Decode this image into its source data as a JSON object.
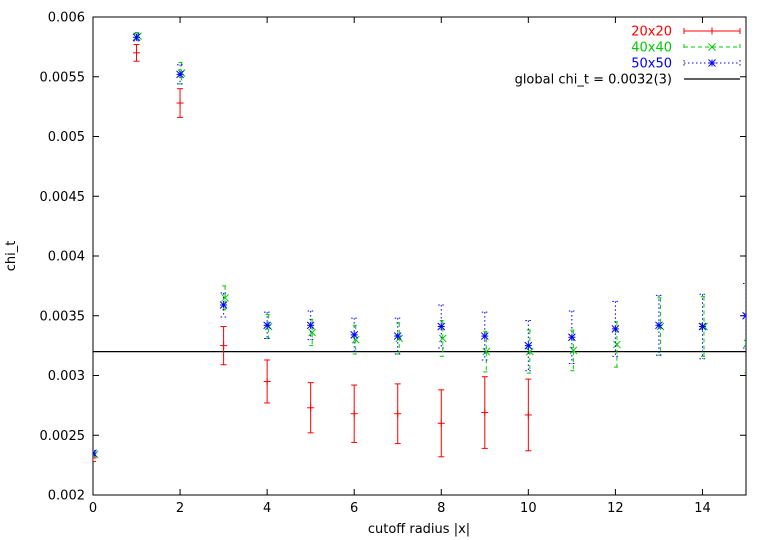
{
  "chart_data": {
    "type": "scatter",
    "title": "",
    "xlabel": "cutoff radius |x|",
    "ylabel": "chi_t",
    "xlim": [
      0,
      15
    ],
    "ylim": [
      0.002,
      0.006
    ],
    "x_ticks": [
      "0",
      "2",
      "4",
      "6",
      "8",
      "10",
      "12",
      "14"
    ],
    "y_ticks": [
      "0.002",
      "0.0025",
      "0.003",
      "0.0035",
      "0.004",
      "0.0045",
      "0.005",
      "0.0055",
      "0.006"
    ],
    "grid": false,
    "legend_position": "top-right",
    "series": [
      {
        "name": "20x20",
        "color": "#ff0000",
        "marker": "plus",
        "errorbar_style": "solid",
        "x": [
          0,
          1,
          2,
          3,
          4,
          5,
          6,
          7,
          8,
          9,
          10
        ],
        "y": [
          0.00231,
          0.0057,
          0.00528,
          0.00325,
          0.00295,
          0.00273,
          0.00268,
          0.00268,
          0.0026,
          0.00269,
          0.00267
        ],
        "yerr": [
          3e-05,
          7e-05,
          0.00012,
          0.00016,
          0.00018,
          0.00021,
          0.00024,
          0.00025,
          0.00028,
          0.0003,
          0.0003
        ]
      },
      {
        "name": "40x40",
        "color": "#00cc00",
        "marker": "cross",
        "errorbar_style": "dashed",
        "x": [
          0,
          1,
          2,
          3,
          4,
          5,
          6,
          7,
          8,
          9,
          10,
          11,
          12,
          13,
          14,
          15
        ],
        "y": [
          0.00234,
          0.00584,
          0.00553,
          0.00365,
          0.00341,
          0.00336,
          0.0033,
          0.00331,
          0.00331,
          0.0032,
          0.0032,
          0.00321,
          0.00326,
          0.00341,
          0.00341,
          0.00327
        ],
        "yerr": [
          2e-05,
          3e-05,
          9e-05,
          0.0001,
          0.0001,
          0.00011,
          0.00012,
          0.00013,
          0.00015,
          0.00017,
          0.00018,
          0.00017,
          0.00019,
          0.00024,
          0.00025,
          0.00025
        ]
      },
      {
        "name": "50x50",
        "color": "#0000ff",
        "marker": "star",
        "errorbar_style": "dotted",
        "x": [
          0,
          1,
          2,
          3,
          4,
          5,
          6,
          7,
          8,
          9,
          10,
          11,
          12,
          13,
          14,
          15
        ],
        "y": [
          0.00235,
          0.00583,
          0.00552,
          0.00359,
          0.00342,
          0.00342,
          0.00334,
          0.00333,
          0.00341,
          0.00333,
          0.00325,
          0.00332,
          0.00339,
          0.00342,
          0.00341,
          0.0035
        ],
        "yerr": [
          2e-05,
          3e-05,
          8e-05,
          0.0001,
          0.00011,
          0.00012,
          0.00014,
          0.00015,
          0.00018,
          0.0002,
          0.00021,
          0.00022,
          0.00023,
          0.00025,
          0.00027,
          0.00027
        ]
      }
    ],
    "reference_line": {
      "name": "global chi_t = 0.0032(3)",
      "color": "#000000",
      "y": 0.0032
    }
  }
}
